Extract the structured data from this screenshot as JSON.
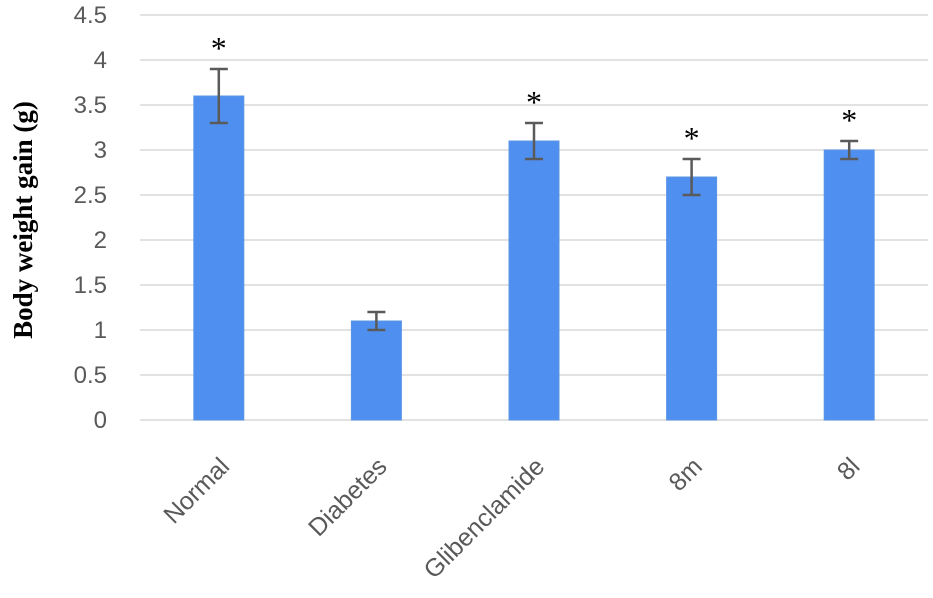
{
  "chart_data": {
    "type": "bar",
    "title": "",
    "xlabel": "",
    "ylabel": "Body weight gain (g)",
    "categories": [
      "Normal",
      "Diabetes",
      "Glibenclamide",
      "8m",
      "8l"
    ],
    "values": [
      3.6,
      1.1,
      3.1,
      2.7,
      3.0
    ],
    "errors": [
      0.3,
      0.1,
      0.2,
      0.2,
      0.1
    ],
    "significance": [
      "*",
      "",
      "*",
      "*",
      "*"
    ],
    "ylim": [
      0,
      4.5
    ],
    "yticks": [
      "0",
      "0.5",
      "1",
      "1.5",
      "2",
      "2.5",
      "3",
      "3.5",
      "4",
      "4.5"
    ],
    "grid": true,
    "bar_color": "#4f8fef",
    "legend": "none"
  }
}
